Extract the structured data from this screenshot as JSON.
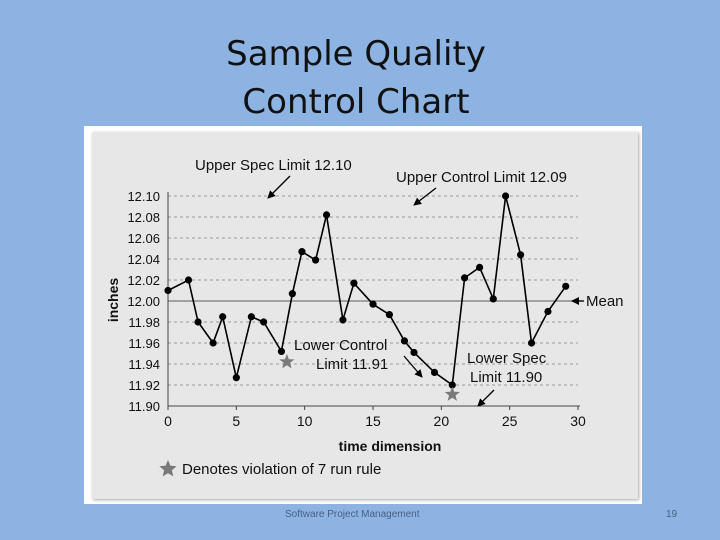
{
  "slide": {
    "title_line1": "Sample Quality",
    "title_line2": "Control Chart",
    "footer": "Software Project Management",
    "page_number": "19"
  },
  "chart_data": {
    "type": "line",
    "xlabel": "time dimension",
    "ylabel": "inches",
    "xlim": [
      0,
      30
    ],
    "ylim": [
      11.9,
      12.1
    ],
    "x_ticks": [
      0,
      5,
      10,
      15,
      20,
      25,
      30
    ],
    "y_ticks": [
      "12.10",
      "12.08",
      "12.06",
      "12.04",
      "12.02",
      "12.00",
      "11.98",
      "11.96",
      "11.94",
      "11.92",
      "11.90"
    ],
    "grid": "horizontal dashed",
    "series_color": "#000000",
    "x": [
      0,
      1.5,
      2.2,
      3.3,
      4.0,
      5.0,
      6.1,
      7.0,
      8.3,
      9.1,
      9.8,
      10.8,
      11.6,
      12.8,
      13.6,
      15.0,
      16.2,
      17.3,
      18.0,
      19.5,
      20.8,
      21.7,
      22.8,
      23.8,
      24.7,
      25.8,
      26.6,
      27.8,
      29.1
    ],
    "values": [
      12.01,
      12.02,
      11.98,
      11.96,
      11.985,
      11.927,
      11.985,
      11.98,
      11.952,
      12.007,
      12.047,
      12.039,
      12.082,
      11.982,
      12.017,
      11.997,
      11.987,
      11.962,
      11.951,
      11.932,
      11.92,
      12.022,
      12.032,
      12.002,
      12.1,
      12.044,
      11.96,
      11.99,
      12.014
    ],
    "reference_lines": {
      "mean": 12.0,
      "upper_spec": 12.1,
      "upper_control": 12.09,
      "lower_control": 11.91,
      "lower_spec": 11.9
    },
    "annotations": {
      "upper_spec": "Upper Spec Limit 12.10",
      "upper_control": "Upper Control Limit 12.09",
      "mean": "Mean",
      "lower_control_line1": "Lower Control",
      "lower_control_line2": "Limit 11.91",
      "lower_spec_line1": "Lower Spec",
      "lower_spec_line2": "Limit 11.90"
    },
    "violation_markers": [
      {
        "x": 8.7,
        "y": 11.942
      },
      {
        "x": 20.8,
        "y": 11.911
      }
    ],
    "legend_text": "Denotes violation of 7 run rule"
  }
}
